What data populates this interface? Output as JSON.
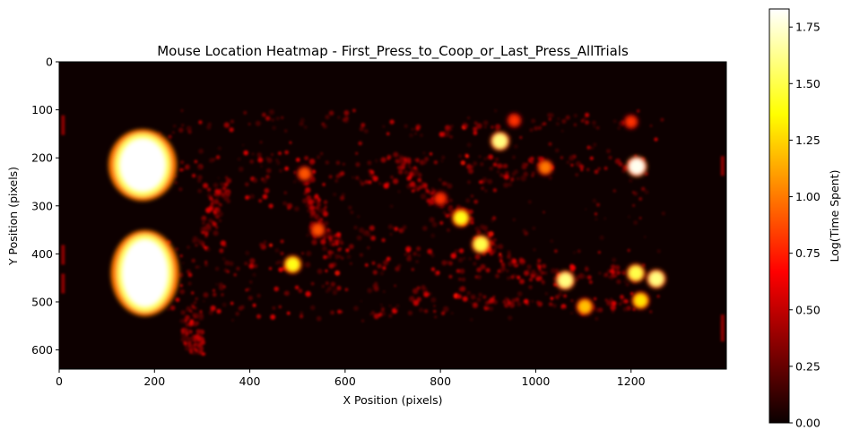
{
  "chart_data": {
    "type": "heatmap",
    "title": "Mouse Location Heatmap - First_Press_to_Coop_or_Last_Press_AllTrials",
    "xlabel": "X Position (pixels)",
    "ylabel": "Y Position (pixels)",
    "xlim": [
      0,
      1400
    ],
    "ylim": [
      640,
      0
    ],
    "x_ticks": [
      "0",
      "200",
      "400",
      "600",
      "800",
      "1000",
      "1200"
    ],
    "y_ticks": [
      "0",
      "100",
      "200",
      "300",
      "400",
      "500",
      "600"
    ],
    "colormap": "hot",
    "colorbar": {
      "label": "Log(Time Spent)",
      "range": [
        0,
        1.83
      ],
      "ticks": [
        "0.00",
        "0.25",
        "0.50",
        "0.75",
        "1.00",
        "1.25",
        "1.50",
        "1.75"
      ]
    },
    "hotspots": [
      {
        "x": 175,
        "y": 215,
        "value": 1.83
      },
      {
        "x": 180,
        "y": 440,
        "value": 1.83
      },
      {
        "x": 1212,
        "y": 218,
        "value": 1.8
      },
      {
        "x": 925,
        "y": 165,
        "value": 1.6
      },
      {
        "x": 843,
        "y": 325,
        "value": 1.4
      },
      {
        "x": 885,
        "y": 380,
        "value": 1.5
      },
      {
        "x": 1062,
        "y": 455,
        "value": 1.6
      },
      {
        "x": 1210,
        "y": 440,
        "value": 1.5
      },
      {
        "x": 1253,
        "y": 452,
        "value": 1.6
      },
      {
        "x": 1220,
        "y": 497,
        "value": 1.3
      },
      {
        "x": 1103,
        "y": 510,
        "value": 1.2
      },
      {
        "x": 490,
        "y": 422,
        "value": 1.4
      },
      {
        "x": 1020,
        "y": 220,
        "value": 1.0
      },
      {
        "x": 515,
        "y": 233,
        "value": 0.9
      },
      {
        "x": 543,
        "y": 350,
        "value": 0.9
      },
      {
        "x": 800,
        "y": 285,
        "value": 0.8
      },
      {
        "x": 955,
        "y": 122,
        "value": 0.8
      },
      {
        "x": 1200,
        "y": 125,
        "value": 0.8
      }
    ]
  }
}
